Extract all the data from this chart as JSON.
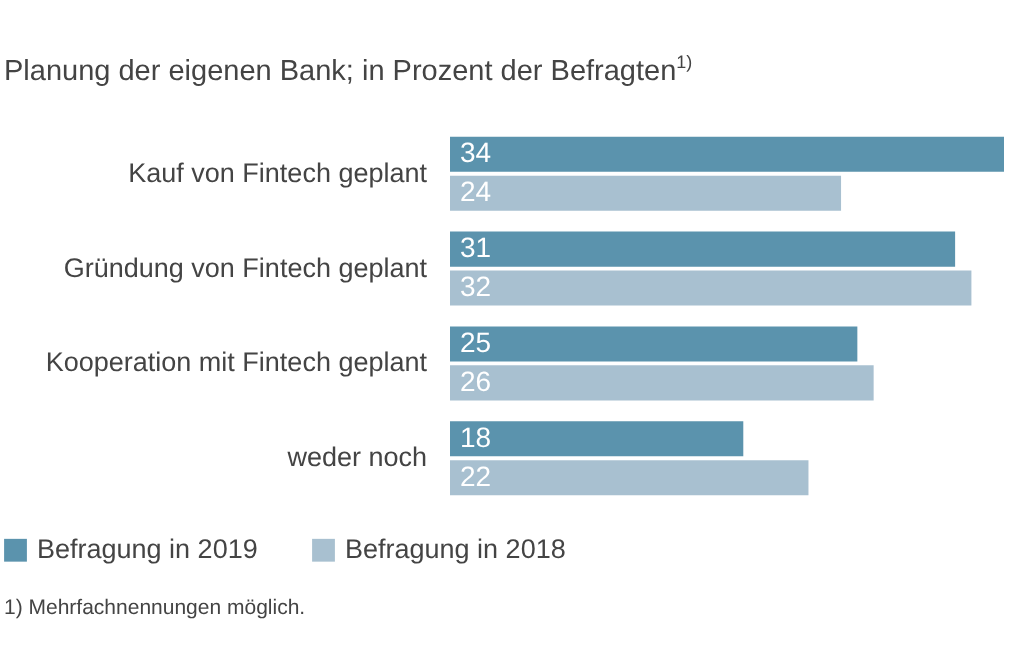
{
  "chart_data": {
    "type": "bar",
    "orientation": "horizontal",
    "subtitle": "Planung der eigenen Bank; in Prozent der Befragten$^{1)}$",
    "categories": [
      "Kauf von Fintech geplant",
      "Gründung von Fintech geplant",
      "Kooperation mit Fintech geplant",
      "weder noch"
    ],
    "series": [
      {
        "name": "Befragung in 2019",
        "color": "#5b93ad",
        "values": [
          34,
          31,
          25,
          18
        ]
      },
      {
        "name": "Befragung in 2018",
        "color": "#a8c0d0",
        "values": [
          24,
          32,
          26,
          22
        ]
      }
    ],
    "data_labels": true,
    "legend": "bottom left",
    "grid": false,
    "annotations": [
      "1) Mehrfachnennungen möglich."
    ]
  }
}
